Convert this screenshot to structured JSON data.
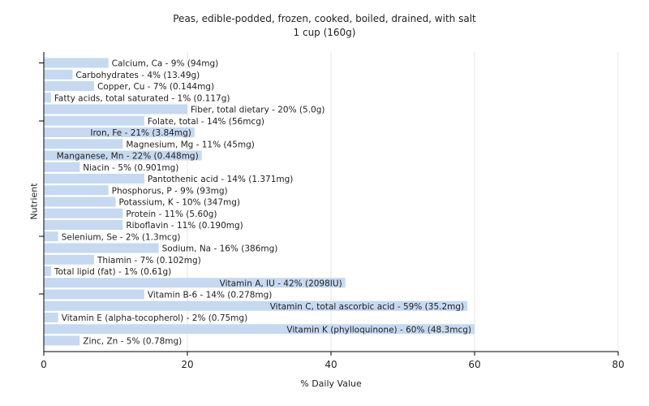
{
  "chart_data": {
    "type": "bar",
    "orientation": "horizontal",
    "title": "Peas, edible-podded, frozen, cooked, boiled, drained, with salt",
    "subtitle": "1 cup (160g)",
    "xlabel": "% Daily Value",
    "ylabel": "Nutrient",
    "xlim": [
      0,
      80
    ],
    "xticks": [
      0,
      20,
      40,
      60,
      80
    ],
    "grid": true,
    "bar_color": "#c6d9f1",
    "categories": [
      "Calcium, Ca",
      "Carbohydrates",
      "Copper, Cu",
      "Fatty acids, total saturated",
      "Fiber, total dietary",
      "Folate, total",
      "Iron, Fe",
      "Magnesium, Mg",
      "Manganese, Mn",
      "Niacin",
      "Pantothenic acid",
      "Phosphorus, P",
      "Potassium, K",
      "Protein",
      "Riboflavin",
      "Selenium, Se",
      "Sodium, Na",
      "Thiamin",
      "Total lipid (fat)",
      "Vitamin A, IU",
      "Vitamin B-6",
      "Vitamin C, total ascorbic acid",
      "Vitamin E (alpha-tocopherol)",
      "Vitamin K (phylloquinone)",
      "Zinc, Zn"
    ],
    "values": [
      9,
      4,
      7,
      1,
      20,
      14,
      21,
      11,
      22,
      5,
      14,
      9,
      10,
      11,
      11,
      2,
      16,
      7,
      1,
      42,
      14,
      59,
      2,
      60,
      5
    ],
    "labels": [
      "Calcium, Ca - 9% (94mg)",
      "Carbohydrates - 4% (13.49g)",
      "Copper, Cu - 7% (0.144mg)",
      "Fatty acids, total saturated - 1% (0.117g)",
      "Fiber, total dietary - 20% (5.0g)",
      "Folate, total - 14% (56mcg)",
      "Iron, Fe - 21% (3.84mg)",
      "Magnesium, Mg - 11% (45mg)",
      "Manganese, Mn - 22% (0.448mg)",
      "Niacin - 5% (0.901mg)",
      "Pantothenic acid - 14% (1.371mg)",
      "Phosphorus, P - 9% (93mg)",
      "Potassium, K - 10% (347mg)",
      "Protein - 11% (5.60g)",
      "Riboflavin - 11% (0.190mg)",
      "Selenium, Se - 2% (1.3mcg)",
      "Sodium, Na - 16% (386mg)",
      "Thiamin - 7% (0.102mg)",
      "Total lipid (fat) - 1% (0.61g)",
      "Vitamin A, IU - 42% (2098IU)",
      "Vitamin B-6 - 14% (0.278mg)",
      "Vitamin C, total ascorbic acid - 59% (35.2mg)",
      "Vitamin E (alpha-tocopherol) - 2% (0.75mg)",
      "Vitamin K (phylloquinone) - 60% (48.3mcg)",
      "Zinc, Zn - 5% (0.78mg)"
    ]
  }
}
